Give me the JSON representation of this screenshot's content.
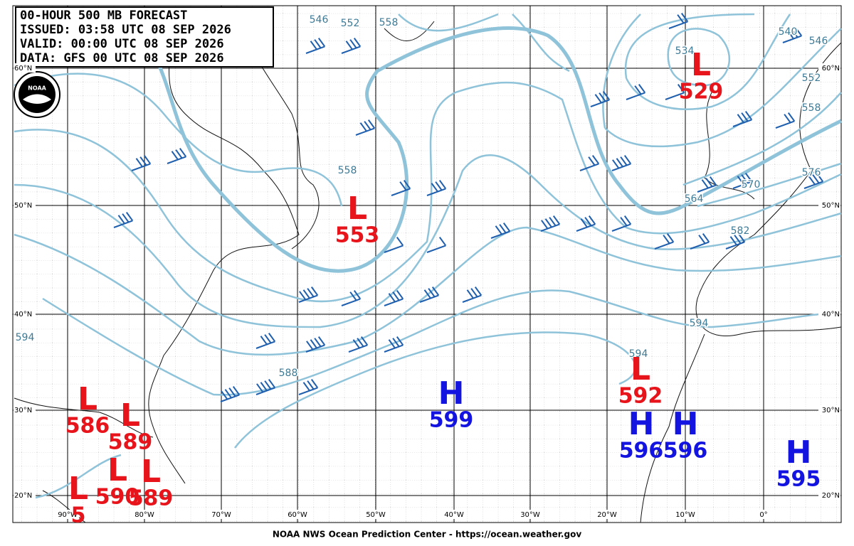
{
  "header": {
    "lines": [
      "00-HOUR 500 MB FORECAST",
      "ISSUED: 03:58 UTC 08 SEP 2026",
      "VALID:  00:00 UTC 08 SEP 2026",
      "DATA:  GFS 00 UTC 08 SEP 2026"
    ]
  },
  "logo": "NOAA",
  "footer": "NOAA NWS Ocean Prediction Center - https://ocean.weather.gov",
  "lat_labels": [
    "60°N",
    "50°N",
    "40°N",
    "30°N",
    "20°N"
  ],
  "lon_labels": [
    "90°W",
    "80°W",
    "70°W",
    "60°W",
    "50°W",
    "40°W",
    "30°W",
    "20°W",
    "10°W",
    "0°"
  ],
  "contour_labels": [
    546,
    552,
    558,
    534,
    540,
    546,
    552,
    558,
    558,
    564,
    570,
    576,
    582,
    588,
    594,
    594,
    594
  ],
  "centers": [
    {
      "type": "L",
      "value": 529
    },
    {
      "type": "L",
      "value": 553
    },
    {
      "type": "L",
      "value": 592
    },
    {
      "type": "L",
      "value": 586
    },
    {
      "type": "L",
      "value": 589
    },
    {
      "type": "L",
      "value": 590
    },
    {
      "type": "L",
      "value": 589
    },
    {
      "type": "L",
      "value": "5"
    },
    {
      "type": "H",
      "value": 599
    },
    {
      "type": "H",
      "value": 596
    },
    {
      "type": "H",
      "value": 596
    },
    {
      "type": "H",
      "value": 595
    }
  ]
}
